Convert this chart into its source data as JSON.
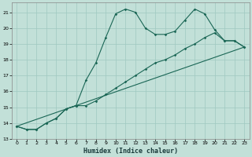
{
  "xlabel": "Humidex (Indice chaleur)",
  "background_color": "#c2e0d8",
  "grid_color": "#9fc8c0",
  "line_color": "#1a6655",
  "spine_color": "#888888",
  "xlim": [
    -0.5,
    23.5
  ],
  "ylim": [
    13.0,
    21.6
  ],
  "yticks": [
    13,
    14,
    15,
    16,
    17,
    18,
    19,
    20,
    21
  ],
  "xticks": [
    0,
    1,
    2,
    3,
    4,
    5,
    6,
    7,
    8,
    9,
    10,
    11,
    12,
    13,
    14,
    15,
    16,
    17,
    18,
    19,
    20,
    21,
    22,
    23
  ],
  "line1_x": [
    0,
    1,
    2,
    3,
    4,
    5,
    6,
    7,
    8,
    9,
    10,
    11,
    12,
    13,
    14,
    15,
    16,
    17,
    18,
    19,
    20,
    21,
    22,
    23
  ],
  "line1_y": [
    13.8,
    13.6,
    13.6,
    14.0,
    14.3,
    14.9,
    15.1,
    16.7,
    17.8,
    19.4,
    20.9,
    21.2,
    21.0,
    20.0,
    19.6,
    19.6,
    19.8,
    20.5,
    21.2,
    20.9,
    19.9,
    19.2,
    19.2,
    18.8
  ],
  "line2_x": [
    0,
    1,
    2,
    3,
    4,
    5,
    6,
    7,
    8,
    9,
    10,
    11,
    12,
    13,
    14,
    15,
    16,
    17,
    18,
    19,
    20,
    21,
    22,
    23
  ],
  "line2_y": [
    13.8,
    13.6,
    13.6,
    14.0,
    14.3,
    14.9,
    15.1,
    15.1,
    15.4,
    15.8,
    16.2,
    16.6,
    17.0,
    17.4,
    17.8,
    18.0,
    18.3,
    18.7,
    19.0,
    19.4,
    19.7,
    19.2,
    19.2,
    18.8
  ],
  "line3_x": [
    0,
    23
  ],
  "line3_y": [
    13.8,
    18.8
  ]
}
